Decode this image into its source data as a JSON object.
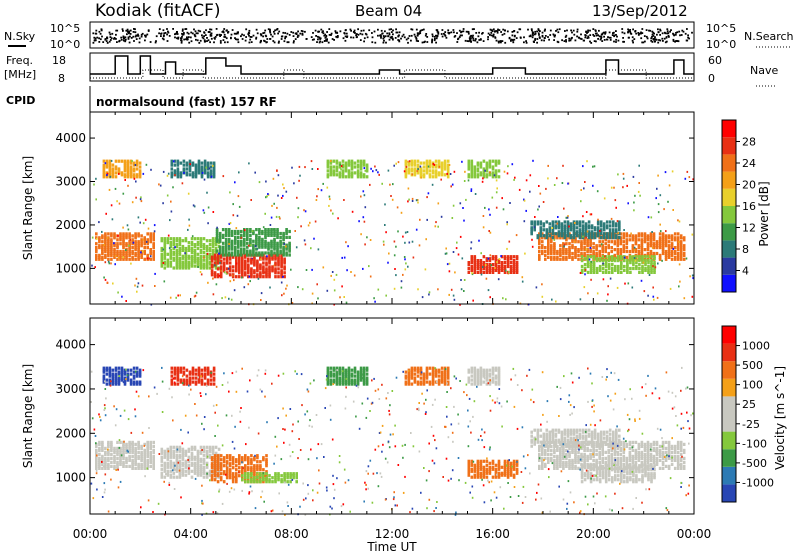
{
  "header": {
    "radar": "Kodiak (fitACF)",
    "beam": "Beam 04",
    "date": "13/Sep/2012"
  },
  "top_panels": {
    "nsky_label": "N.Sky",
    "nsearch_label": "N.Search",
    "nsky_ticks": [
      "10^5",
      "10^0"
    ],
    "freq_label": "Freq.",
    "freq_unit": "[MHz]",
    "freq_ticks": [
      "18",
      "8"
    ],
    "nave_label": "Nave",
    "nave_ticks": [
      "60",
      "0"
    ],
    "cpid_label": "CPID",
    "cpid_text": "normalsound (fast) 157 RF"
  },
  "chart_data": [
    {
      "type": "heatmap",
      "title": "",
      "xlabel": "Time UT",
      "ylabel": "Slant Range [km]",
      "x_ticks": [
        "00:00",
        "04:00",
        "08:00",
        "12:00",
        "16:00",
        "20:00",
        "00:00"
      ],
      "y_ticks": [
        "1000",
        "2000",
        "3000",
        "4000"
      ],
      "xlim_hours": [
        0,
        24
      ],
      "ylim_km": [
        180,
        4600
      ],
      "colorbar": {
        "label": "Power [dB]",
        "ticks": [
          "4",
          "8",
          "12",
          "16",
          "20",
          "24",
          "28"
        ],
        "colors": [
          "#1010ff",
          "#2a3aa0",
          "#2c7a78",
          "#3c9a46",
          "#84c83c",
          "#e8d02c",
          "#f4a018",
          "#f07018",
          "#e83014",
          "#ff0000"
        ]
      },
      "regions": [
        {
          "t0": 0.2,
          "t1": 2.6,
          "r0": 1200,
          "r1": 1800,
          "color": "#f07018"
        },
        {
          "t0": 2.8,
          "t1": 5.2,
          "r0": 1000,
          "r1": 1700,
          "color": "#84c83c"
        },
        {
          "t0": 4.8,
          "t1": 7.8,
          "r0": 800,
          "r1": 1300,
          "color": "#e83014"
        },
        {
          "t0": 5.0,
          "t1": 8.0,
          "r0": 1300,
          "r1": 1900,
          "color": "#3c9a46"
        },
        {
          "t0": 0.5,
          "t1": 2.0,
          "r0": 3100,
          "r1": 3500,
          "color": "#f4a018"
        },
        {
          "t0": 3.2,
          "t1": 5.0,
          "r0": 3100,
          "r1": 3500,
          "color": "#2c7a78"
        },
        {
          "t0": 9.4,
          "t1": 11.0,
          "r0": 3100,
          "r1": 3500,
          "color": "#84c83c"
        },
        {
          "t0": 12.5,
          "t1": 14.2,
          "r0": 3100,
          "r1": 3500,
          "color": "#e8d02c"
        },
        {
          "t0": 15.0,
          "t1": 16.2,
          "r0": 3100,
          "r1": 3500,
          "color": "#84c83c"
        },
        {
          "t0": 15.0,
          "t1": 17.0,
          "r0": 900,
          "r1": 1300,
          "color": "#e83014"
        },
        {
          "t0": 17.8,
          "t1": 23.6,
          "r0": 1200,
          "r1": 1800,
          "color": "#f07018"
        },
        {
          "t0": 17.5,
          "t1": 21.0,
          "r0": 1700,
          "r1": 2100,
          "color": "#2c7a78"
        },
        {
          "t0": 19.5,
          "t1": 22.5,
          "r0": 900,
          "r1": 1300,
          "color": "#84c83c"
        }
      ]
    },
    {
      "type": "heatmap",
      "title": "",
      "xlabel": "Time UT",
      "ylabel": "Slant Range [km]",
      "x_ticks": [
        "00:00",
        "04:00",
        "08:00",
        "12:00",
        "16:00",
        "20:00",
        "00:00"
      ],
      "y_ticks": [
        "1000",
        "2000",
        "3000",
        "4000"
      ],
      "xlim_hours": [
        0,
        24
      ],
      "ylim_km": [
        180,
        4600
      ],
      "colorbar": {
        "label": "Velocity [m s^-1]",
        "ticks": [
          "1000",
          "500",
          "100",
          "25",
          "-25",
          "-100",
          "-500",
          "-1000"
        ],
        "colors": [
          "#2846b4",
          "#2c7ab4",
          "#3c9a46",
          "#84c83c",
          "#c8c8c0",
          "#c8c8c0",
          "#f4a018",
          "#f07018",
          "#e83014",
          "#ff0000"
        ]
      },
      "regions": [
        {
          "t0": 0.2,
          "t1": 2.6,
          "r0": 1200,
          "r1": 1800,
          "color": "#c8c8c0"
        },
        {
          "t0": 2.8,
          "t1": 5.2,
          "r0": 1000,
          "r1": 1700,
          "color": "#c8c8c0"
        },
        {
          "t0": 4.8,
          "t1": 7.0,
          "r0": 900,
          "r1": 1500,
          "color": "#f07018"
        },
        {
          "t0": 6.0,
          "t1": 8.2,
          "r0": 900,
          "r1": 1100,
          "color": "#84c83c"
        },
        {
          "t0": 0.5,
          "t1": 2.0,
          "r0": 3100,
          "r1": 3500,
          "color": "#2846b4"
        },
        {
          "t0": 3.2,
          "t1": 5.0,
          "r0": 3100,
          "r1": 3500,
          "color": "#e83014"
        },
        {
          "t0": 9.4,
          "t1": 11.0,
          "r0": 3100,
          "r1": 3500,
          "color": "#3c9a46"
        },
        {
          "t0": 12.5,
          "t1": 14.2,
          "r0": 3100,
          "r1": 3500,
          "color": "#f07018"
        },
        {
          "t0": 15.0,
          "t1": 16.2,
          "r0": 3100,
          "r1": 3500,
          "color": "#c8c8c0"
        },
        {
          "t0": 15.0,
          "t1": 17.0,
          "r0": 1000,
          "r1": 1400,
          "color": "#f07018"
        },
        {
          "t0": 17.8,
          "t1": 23.6,
          "r0": 1200,
          "r1": 1800,
          "color": "#c8c8c0"
        },
        {
          "t0": 17.5,
          "t1": 21.0,
          "r0": 1700,
          "r1": 2100,
          "color": "#c8c8c0"
        },
        {
          "t0": 19.5,
          "t1": 22.5,
          "r0": 900,
          "r1": 1300,
          "color": "#c8c8c0"
        }
      ]
    }
  ]
}
